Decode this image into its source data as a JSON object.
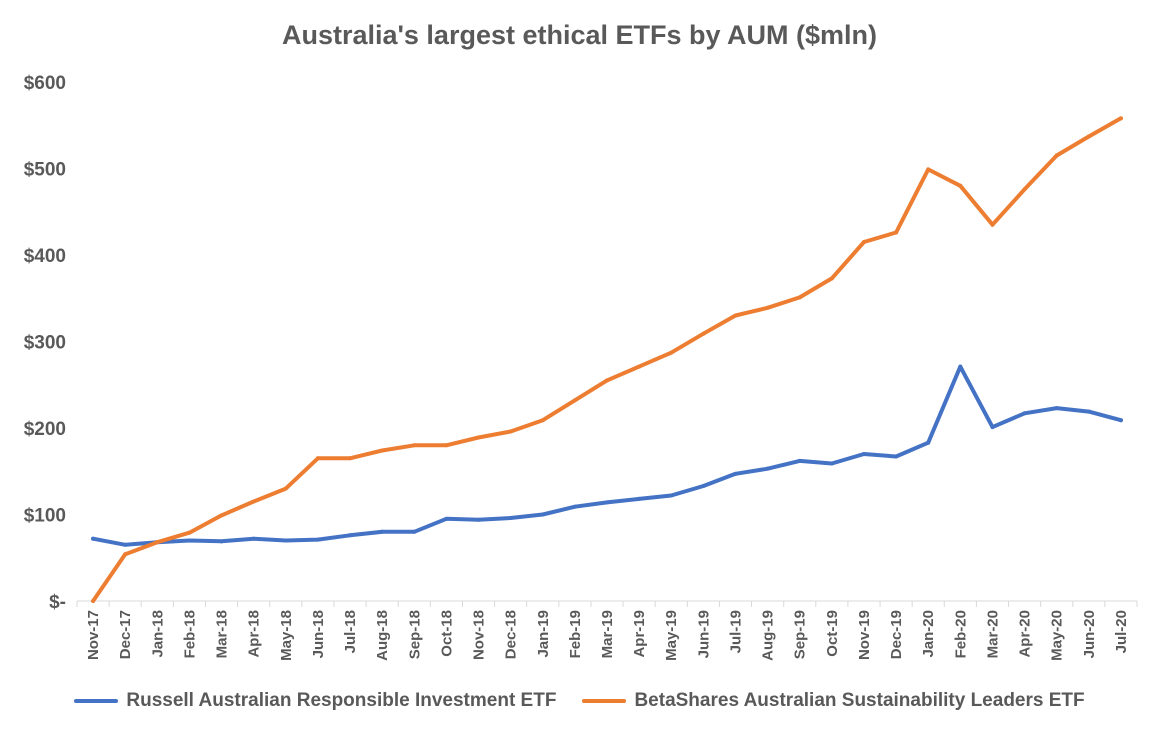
{
  "chart_data": {
    "type": "line",
    "title": "Australia's largest ethical ETFs by AUM ($mln)",
    "xlabel": "",
    "ylabel": "",
    "ylim": [
      0,
      600
    ],
    "ytick_values": [
      0,
      100,
      200,
      300,
      400,
      500,
      600
    ],
    "ytick_labels": [
      "$-",
      "$100",
      "$200",
      "$300",
      "$400",
      "$500",
      "$600"
    ],
    "grid": false,
    "legend_position": "bottom",
    "categories": [
      "Nov-17",
      "Dec-17",
      "Jan-18",
      "Feb-18",
      "Mar-18",
      "Apr-18",
      "May-18",
      "Jun-18",
      "Jul-18",
      "Aug-18",
      "Sep-18",
      "Oct-18",
      "Nov-18",
      "Dec-18",
      "Jan-19",
      "Feb-19",
      "Mar-19",
      "Apr-19",
      "May-19",
      "Jun-19",
      "Jul-19",
      "Aug-19",
      "Sep-19",
      "Oct-19",
      "Nov-19",
      "Dec-19",
      "Jan-20",
      "Feb-20",
      "Mar-20",
      "Apr-20",
      "May-20",
      "Jun-20",
      "Jul-20"
    ],
    "series": [
      {
        "name": "Russell Australian Responsible Investment ETF",
        "color": "#4472C4",
        "values": [
          72,
          65,
          68,
          70,
          69,
          72,
          70,
          71,
          76,
          80,
          80,
          95,
          94,
          96,
          100,
          109,
          114,
          118,
          122,
          133,
          147,
          153,
          162,
          159,
          170,
          167,
          183,
          271,
          201,
          217,
          223,
          219,
          209
        ]
      },
      {
        "name": "BetaShares Australian Sustainability Leaders ETF",
        "color": "#ED7D31",
        "values": [
          0,
          54,
          68,
          79,
          99,
          115,
          130,
          165,
          165,
          174,
          180,
          180,
          189,
          196,
          209,
          232,
          255,
          271,
          287,
          309,
          330,
          339,
          351,
          373,
          415,
          426,
          499,
          480,
          435,
          476,
          515,
          537,
          558
        ]
      }
    ]
  }
}
